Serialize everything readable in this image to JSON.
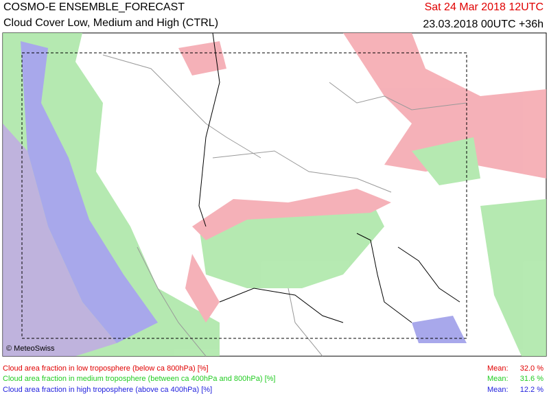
{
  "header": {
    "title": "COSMO-E ENSEMBLE_FORECAST",
    "subtitle": "Cloud Cover Low, Medium and High (CTRL)",
    "valid_time": "Sat 24 Mar 2018 12UTC",
    "run": "23.03.2018 00UTC +36h"
  },
  "map": {
    "copyright": "© MeteoSwiss"
  },
  "legend": [
    {
      "label": "Cloud area fraction in low troposphere (below ca 800hPa) [%]",
      "mean_label": "Mean:",
      "mean": "32.0 %"
    },
    {
      "label": "Cloud area fraction in medium troposphere (between ca 400hPa and 800hPa) [%]",
      "mean_label": "Mean:",
      "mean": "31.6 %"
    },
    {
      "label": "Cloud area fraction in high troposphere (above ca 400hPa) [%]",
      "mean_label": "Mean:",
      "mean": "12.2 %"
    }
  ]
}
